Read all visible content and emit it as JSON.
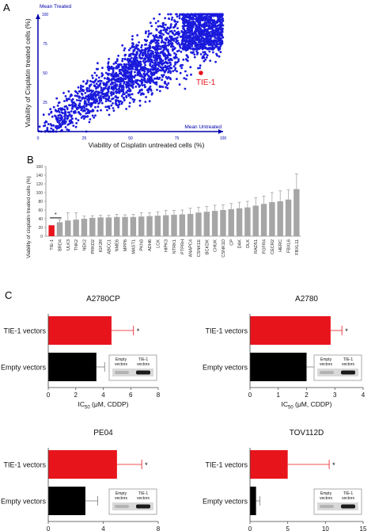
{
  "panels": {
    "a": "A",
    "b": "B",
    "c": "C"
  },
  "colors": {
    "scatter": "#1a1adc",
    "axis_a": "#0000aa",
    "highlight": "#e8141c",
    "bar_gray": "#a6a6a6",
    "bar_black": "#000000",
    "error_red": "#e8141c"
  },
  "chart_data": [
    {
      "type": "scatter",
      "panel": "A",
      "xlabel": "Viability of Cisplatin untreated cells (%)",
      "ylabel": "Viability of Cisplatin treated  cells (%)",
      "xlim": [
        0,
        100
      ],
      "ylim": [
        0,
        100
      ],
      "xticks": [
        "0",
        "25",
        "50",
        "75",
        "100"
      ],
      "yticks": [
        "0",
        "25",
        "50",
        "75",
        "100"
      ],
      "x_axis_name": "Mean Untreated",
      "y_axis_name": "Mean Treated",
      "highlight": {
        "label": "TIE-1",
        "x": 88,
        "y": 50
      }
    },
    {
      "type": "bar",
      "panel": "B",
      "ylabel": "Viability of cisplatin treated cells (%)",
      "ylim": [
        0,
        160
      ],
      "yticks": [
        "0",
        "20",
        "40",
        "60",
        "80",
        "100",
        "120",
        "140",
        "160"
      ],
      "categories": [
        "TIE-1",
        "BRD4",
        "ULK3",
        "TNK2",
        "NEK2",
        "PRKD2",
        "IGF2R",
        "ABCC1",
        "NME6",
        "MPP6",
        "MAST1",
        "PKN3",
        "ADH6",
        "LCK",
        "HIPK3",
        "NTRK1",
        "PTPRH",
        "ANAPC4",
        "CSNK1E",
        "BCKDK",
        "CHUK",
        "CSNK1D",
        "CP",
        "DAK",
        "DLK",
        "RAD51",
        "FGFR4",
        "CECR2",
        "HERC",
        "FBXL6",
        "FBXL11"
      ],
      "values": [
        25,
        32,
        36,
        38,
        40,
        42,
        43,
        43,
        44,
        44,
        44,
        45,
        46,
        47,
        48,
        49,
        50,
        51,
        54,
        56,
        58,
        60,
        62,
        64,
        66,
        70,
        74,
        78,
        80,
        84,
        108
      ],
      "errors": [
        0,
        6,
        18,
        16,
        6,
        5,
        5,
        5,
        6,
        5,
        6,
        9,
        8,
        9,
        11,
        10,
        10,
        13,
        12,
        12,
        13,
        12,
        13,
        14,
        14,
        18,
        18,
        22,
        24,
        22,
        35
      ],
      "significance": {
        "label": "*",
        "between": [
          "TIE-1",
          "BRD4"
        ]
      }
    },
    {
      "type": "bar",
      "orientation": "horizontal",
      "panel": "C",
      "title": "A2780CP",
      "xlabel_main": "IC",
      "xlabel_sub": "50",
      "xlabel_rest": " (μM, CDDP)",
      "categories": [
        "TIE-1 vectors",
        "Empty vectors"
      ],
      "values": [
        4.6,
        3.5
      ],
      "errors": [
        1.6,
        0.6
      ],
      "xlim": [
        0,
        8
      ],
      "xticks": [
        "0",
        "2",
        "4",
        "6",
        "8"
      ],
      "significance": "*",
      "blot_labels": [
        [
          "Empty",
          "vectors"
        ],
        [
          "TIE-1",
          "vectors"
        ]
      ]
    },
    {
      "type": "bar",
      "orientation": "horizontal",
      "panel": "C",
      "title": "A2780",
      "xlabel_main": "IC",
      "xlabel_sub": "50",
      "xlabel_rest": " (μM, CDDP)",
      "categories": [
        "TIE-1 vectors",
        "Empty vectors"
      ],
      "values": [
        2.85,
        2.0
      ],
      "errors": [
        0.4,
        0.55
      ],
      "xlim": [
        0,
        4
      ],
      "xticks": [
        "0",
        "1",
        "2",
        "3",
        "4"
      ],
      "significance": "*",
      "blot_labels": [
        [
          "Empty",
          "vectors"
        ],
        [
          "TIE-1",
          "vectors"
        ]
      ]
    },
    {
      "type": "bar",
      "orientation": "horizontal",
      "panel": "C",
      "title": "PE04",
      "xlabel_main": "IC",
      "xlabel_sub": "50",
      "xlabel_rest": " (μM, CDDP)",
      "categories": [
        "TIE-1 vectors",
        "Empty vectors"
      ],
      "values": [
        5.0,
        2.7
      ],
      "errors": [
        1.8,
        0.9
      ],
      "xlim": [
        0,
        8
      ],
      "xticks": [
        "0",
        "4",
        "8"
      ],
      "significance": "*",
      "blot_labels": [
        [
          "Empty",
          "vectors"
        ],
        [
          "TIE-1",
          "vectors"
        ]
      ]
    },
    {
      "type": "bar",
      "orientation": "horizontal",
      "panel": "C",
      "title": "TOV112D",
      "xlabel_main": "IC",
      "xlabel_sub": "50",
      "xlabel_rest": " (μM, CDDP)",
      "categories": [
        "TIE-1 vectors",
        "Empty vectors"
      ],
      "values": [
        5.0,
        0.8
      ],
      "errors": [
        5.5,
        0.5
      ],
      "xlim": [
        0,
        15
      ],
      "xticks": [
        "0",
        "5",
        "10",
        "15"
      ],
      "significance": "*",
      "blot_labels": [
        [
          "Empty",
          "vectors"
        ],
        [
          "TIE-1",
          "vectors"
        ]
      ]
    }
  ]
}
